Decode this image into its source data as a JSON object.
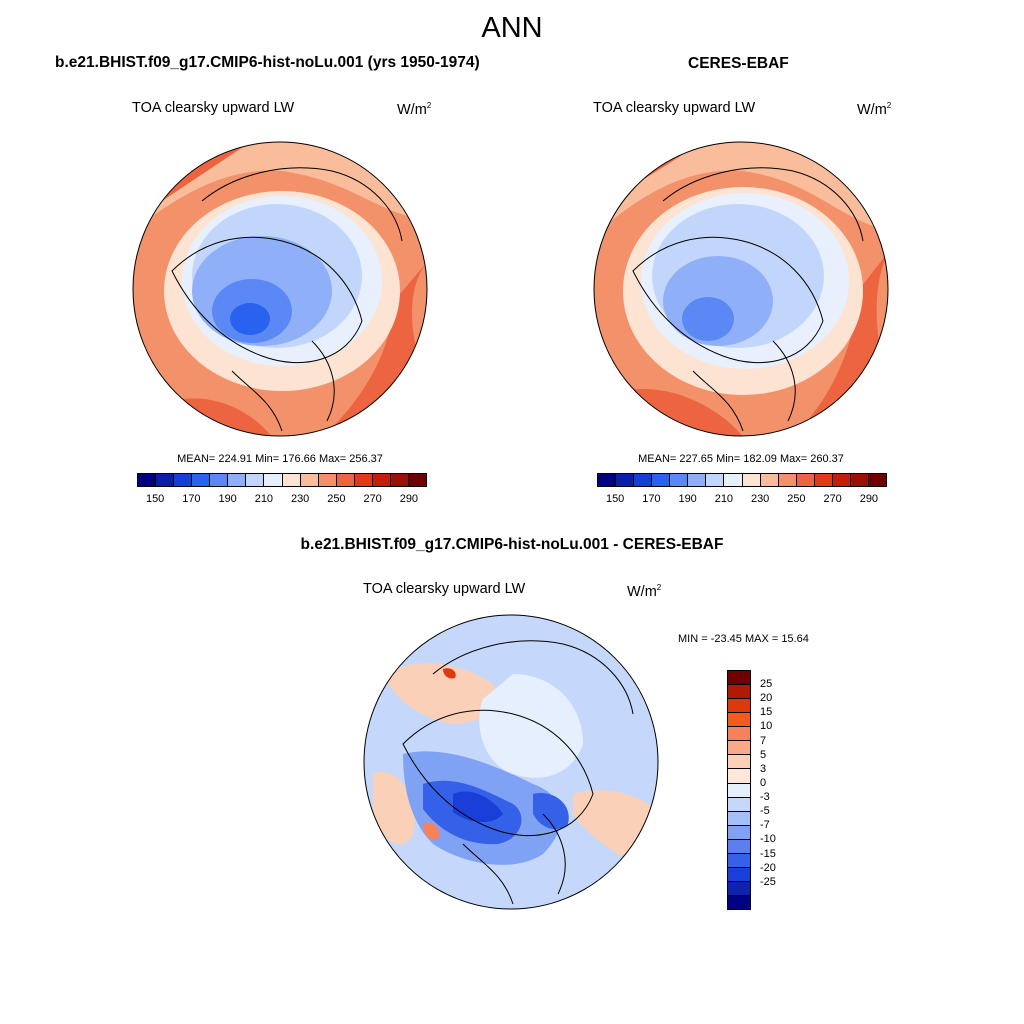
{
  "figure": {
    "season": "ANN"
  },
  "top_left": {
    "title": "b.e21.BHIST.f09_g17.CMIP6-hist-noLu.001 (yrs 1950-1974)",
    "variable": "TOA clearsky upward LW",
    "unit": "W/m",
    "unit_sup": "2",
    "stats": "MEAN= 224.91  Min= 176.66  Max= 256.37"
  },
  "top_right": {
    "title": "CERES-EBAF",
    "variable": "TOA clearsky upward LW",
    "unit": "W/m",
    "unit_sup": "2",
    "stats": "MEAN= 227.65  Min= 182.09  Max= 260.37"
  },
  "bottom": {
    "title": "b.e21.BHIST.f09_g17.CMIP6-hist-noLu.001 - CERES-EBAF",
    "variable": "TOA clearsky upward LW",
    "unit": "W/m",
    "unit_sup": "2",
    "stats": "MIN = -23.45 MAX =  15.64"
  },
  "abs_colorbar": {
    "colors": [
      "#000080",
      "#0a1fa8",
      "#1440d8",
      "#2a62f0",
      "#5a88f5",
      "#8fb0f8",
      "#c2d6fb",
      "#e8f0fd",
      "#fde3d2",
      "#f9bd9b",
      "#f3916a",
      "#ec6440",
      "#e03a18",
      "#c41e08",
      "#9a1005",
      "#700000"
    ],
    "tick_labels": [
      "150",
      "170",
      "190",
      "210",
      "230",
      "250",
      "270",
      "290"
    ]
  },
  "diff_colorbar": {
    "colors": [
      "#700000",
      "#b01a05",
      "#dc3a0c",
      "#f35a1e",
      "#f7825a",
      "#f9a987",
      "#fbd0b8",
      "#fde8db",
      "#e6effd",
      "#c5d8fb",
      "#a4c0f8",
      "#7fa2f4",
      "#5a80ef",
      "#3560e8",
      "#1a3ed8",
      "#0b24b0",
      "#000080"
    ],
    "tick_labels": [
      "25",
      "20",
      "15",
      "10",
      "7",
      "5",
      "3",
      "0",
      "-3",
      "-5",
      "-7",
      "-10",
      "-15",
      "-20",
      "-25"
    ]
  }
}
